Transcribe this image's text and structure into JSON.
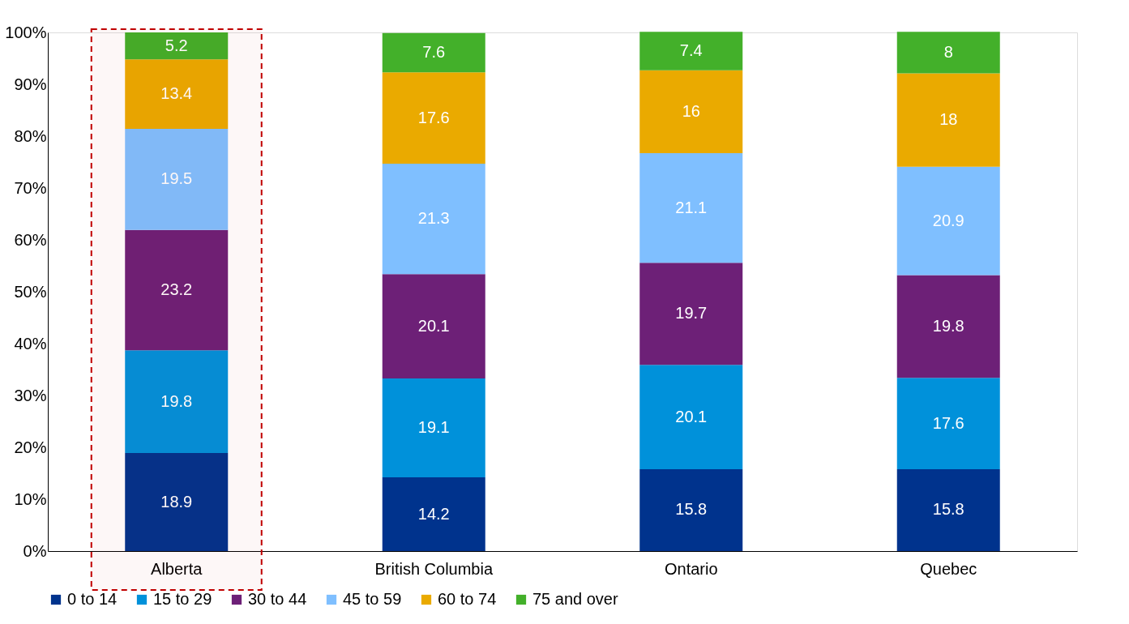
{
  "chart_data": {
    "type": "bar",
    "stacked": true,
    "data_labels": true,
    "categories": [
      "Alberta",
      "British Columbia",
      "Ontario",
      "Quebec"
    ],
    "series": [
      {
        "name": "0 to 14",
        "color": "#00338d",
        "values": [
          18.9,
          14.2,
          15.8,
          15.8
        ]
      },
      {
        "name": "15 to 29",
        "color": "#0091da",
        "values": [
          19.8,
          19.1,
          20.1,
          17.6
        ]
      },
      {
        "name": "30 to 44",
        "color": "#6d2077",
        "values": [
          23.2,
          20.1,
          19.7,
          19.8
        ]
      },
      {
        "name": "45 to 59",
        "color": "#7fbfff",
        "values": [
          19.5,
          21.3,
          21.1,
          20.9
        ]
      },
      {
        "name": "60 to 74",
        "color": "#eaaa00",
        "values": [
          13.4,
          17.6,
          16,
          18
        ]
      },
      {
        "name": "75 and over",
        "color": "#43b02a",
        "values": [
          5.2,
          7.6,
          7.4,
          8
        ]
      }
    ],
    "ylim": [
      0,
      100
    ],
    "yticks": [
      {
        "value": 0,
        "label": "0%"
      },
      {
        "value": 10,
        "label": "10%"
      },
      {
        "value": 20,
        "label": "20%"
      },
      {
        "value": 30,
        "label": "30%"
      },
      {
        "value": 40,
        "label": "40%"
      },
      {
        "value": 50,
        "label": "50%"
      },
      {
        "value": 60,
        "label": "60%"
      },
      {
        "value": 70,
        "label": "70%"
      },
      {
        "value": 80,
        "label": "80%"
      },
      {
        "value": 90,
        "label": "90%"
      },
      {
        "value": 100,
        "label": "100%"
      }
    ],
    "grid": false,
    "legend": "bottom",
    "bands": [
      {
        "axis": "x",
        "from": "Alberta",
        "to": "Alberta",
        "color": "#c00000"
      }
    ]
  }
}
